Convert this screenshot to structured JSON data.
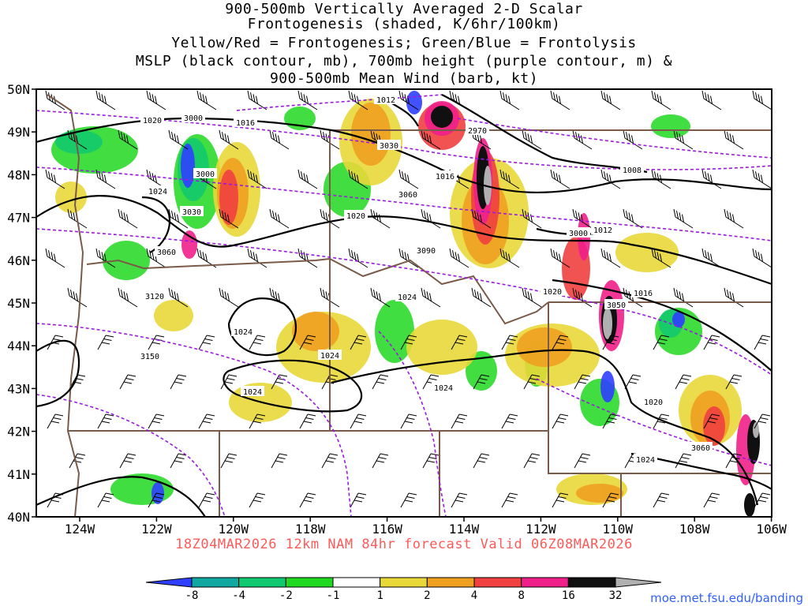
{
  "header": {
    "lines": [
      "900-500mb Vertically Averaged 2-D Scalar",
      "Frontogenesis (shaded, K/6hr/100km)",
      "Yellow/Red = Frontogenesis;  Green/Blue = Frontolysis",
      "MSLP (black contour, mb), 700mb height (purple contour, m) &",
      "900-500mb Mean Wind (barb, kt)"
    ]
  },
  "map": {
    "lat_labels": [
      "50N",
      "49N",
      "48N",
      "47N",
      "46N",
      "45N",
      "44N",
      "43N",
      "42N",
      "41N",
      "40N"
    ],
    "lon_labels": [
      "124W",
      "122W",
      "120W",
      "118W",
      "116W",
      "114W",
      "112W",
      "110W",
      "108W",
      "106W"
    ],
    "mslp_labels": [
      "1020",
      "1016",
      "1012",
      "1024",
      "1020",
      "1016",
      "1008",
      "1012",
      "1020",
      "1016",
      "1024",
      "1024",
      "1024",
      "1024",
      "1020",
      "1024",
      "1024"
    ],
    "height_labels": [
      "3000",
      "3030",
      "3060",
      "3090",
      "3000",
      "3030",
      "3060",
      "2970",
      "3000",
      "3050",
      "3120",
      "3150",
      "3060"
    ]
  },
  "colorbar": {
    "ticks": [
      "-8",
      "-4",
      "-2",
      "-1",
      "1",
      "2",
      "4",
      "8",
      "16",
      "32"
    ],
    "colors": [
      "#2f3fff",
      "#10a8a0",
      "#10c870",
      "#20d820",
      "#ffffff",
      "#e8d838",
      "#f0a020",
      "#f04040",
      "#f0208a",
      "#101010",
      "#b0b0b0"
    ]
  },
  "footer": {
    "valid_text": "18Z04MAR2026 12km NAM 84hr forecast Valid 06Z08MAR2026",
    "credit": "moe.met.fsu.edu/banding"
  }
}
